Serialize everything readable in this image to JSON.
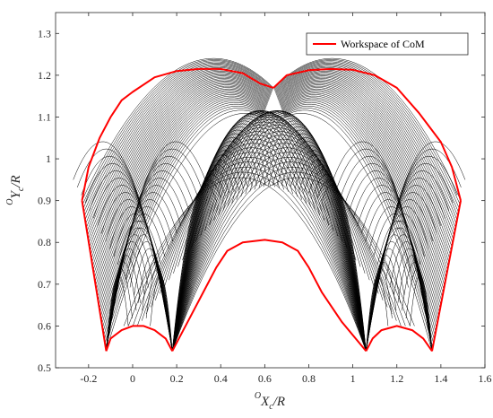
{
  "chart_data": {
    "type": "line",
    "title": "",
    "xlabel": "ᴼX_c/R",
    "ylabel": "ᴼY_c/R",
    "xlabel_parts": {
      "sup": "O",
      "main": "X",
      "sub": "c",
      "tail": "/R"
    },
    "ylabel_parts": {
      "sup": "O",
      "main": "Y",
      "sub": "c",
      "tail": "/R"
    },
    "xlim": [
      -0.35,
      1.6
    ],
    "ylim": [
      0.5,
      1.35
    ],
    "x_ticks": [
      -0.2,
      0,
      0.2,
      0.4,
      0.6,
      0.8,
      1,
      1.2,
      1.4,
      1.6
    ],
    "x_tick_labels": [
      "-0.2",
      "0",
      "0.2",
      "0.4",
      "0.6",
      "0.8",
      "1",
      "1.2",
      "1.4",
      "1.6"
    ],
    "y_ticks": [
      0.5,
      0.6,
      0.7,
      0.8,
      0.9,
      1,
      1.1,
      1.2,
      1.3
    ],
    "y_tick_labels": [
      "0.5",
      "0.6",
      "0.7",
      "0.8",
      "0.9",
      "1",
      "1.1",
      "1.2",
      "1.3"
    ],
    "grid": false,
    "legend_position": "top-right",
    "legend": [
      {
        "name": "Workspace of CoM",
        "color": "#ff0000"
      }
    ],
    "family_color": "#000000",
    "workspace_color": "#ff0000",
    "series": [
      {
        "name": "Workspace of CoM",
        "color": "#ff0000",
        "segments": [
          [
            [
              -0.23,
              0.9
            ],
            [
              -0.2,
              0.98
            ],
            [
              -0.15,
              1.05
            ],
            [
              -0.1,
              1.1
            ],
            [
              -0.05,
              1.14
            ],
            [
              0.0,
              1.16
            ],
            [
              0.1,
              1.195
            ],
            [
              0.2,
              1.21
            ],
            [
              0.3,
              1.215
            ],
            [
              0.4,
              1.215
            ],
            [
              0.5,
              1.205
            ],
            [
              0.58,
              1.18
            ],
            [
              0.64,
              1.17
            ]
          ],
          [
            [
              0.64,
              1.17
            ],
            [
              0.7,
              1.2
            ],
            [
              0.8,
              1.212
            ],
            [
              0.9,
              1.215
            ],
            [
              1.0,
              1.213
            ],
            [
              1.1,
              1.2
            ],
            [
              1.2,
              1.17
            ],
            [
              1.3,
              1.11
            ],
            [
              1.4,
              1.04
            ],
            [
              1.45,
              0.98
            ],
            [
              1.49,
              0.9
            ]
          ],
          [
            [
              -0.23,
              0.9
            ],
            [
              -0.12,
              0.54
            ]
          ],
          [
            [
              1.49,
              0.9
            ],
            [
              1.36,
              0.54
            ]
          ],
          [
            [
              -0.12,
              0.54
            ],
            [
              -0.1,
              0.57
            ],
            [
              -0.05,
              0.59
            ],
            [
              0.0,
              0.6
            ],
            [
              0.05,
              0.6
            ],
            [
              0.1,
              0.59
            ],
            [
              0.15,
              0.57
            ],
            [
              0.18,
              0.54
            ]
          ],
          [
            [
              1.06,
              0.54
            ],
            [
              1.09,
              0.57
            ],
            [
              1.13,
              0.59
            ],
            [
              1.2,
              0.6
            ],
            [
              1.27,
              0.59
            ],
            [
              1.32,
              0.57
            ],
            [
              1.36,
              0.54
            ]
          ],
          [
            [
              0.18,
              0.54
            ],
            [
              0.25,
              0.61
            ],
            [
              0.32,
              0.68
            ],
            [
              0.38,
              0.74
            ],
            [
              0.43,
              0.78
            ],
            [
              0.5,
              0.8
            ],
            [
              0.6,
              0.806
            ],
            [
              0.68,
              0.8
            ],
            [
              0.75,
              0.78
            ],
            [
              0.8,
              0.74
            ],
            [
              0.86,
              0.68
            ],
            [
              0.95,
              0.61
            ],
            [
              1.06,
              0.54
            ]
          ]
        ]
      },
      {
        "name": "",
        "type": "curve_family",
        "color": "#000000",
        "families": [
          {
            "anchor": [
              -0.23,
              0.9
            ],
            "end": [
              -0.12,
              0.54
            ],
            "toward": [
              0.64,
              1.17
            ],
            "count": 40,
            "peak_range": [
              1.0,
              1.215
            ]
          },
          {
            "anchor": [
              1.49,
              0.9
            ],
            "end": [
              1.36,
              0.54
            ],
            "toward": [
              0.64,
              1.17
            ],
            "count": 40,
            "peak_range": [
              1.0,
              1.215
            ]
          },
          {
            "anchor": [
              0.18,
              0.54
            ],
            "end": [
              0.64,
              1.1
            ],
            "count": 45,
            "peak_range": [
              0.8,
              1.1
            ]
          },
          {
            "anchor": [
              1.06,
              0.54
            ],
            "end": [
              0.64,
              1.1
            ],
            "count": 45,
            "peak_range": [
              0.8,
              1.1
            ]
          }
        ]
      }
    ]
  }
}
